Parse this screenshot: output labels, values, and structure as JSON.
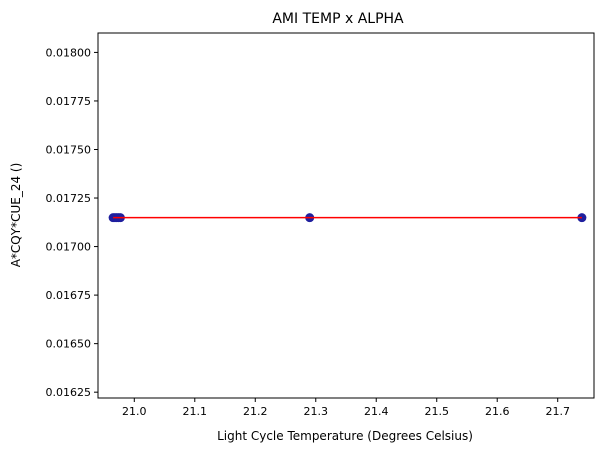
{
  "chart_data": {
    "type": "scatter",
    "title": "AMI TEMP x ALPHA",
    "xlabel": "Light Cycle Temperature (Degrees Celsius)",
    "ylabel": "A*CQY*CUE_24 ()",
    "xlim": [
      20.94,
      21.76
    ],
    "ylim": [
      0.01622,
      0.0181
    ],
    "xticks": [
      "21.0",
      "21.1",
      "21.2",
      "21.3",
      "21.4",
      "21.5",
      "21.6",
      "21.7"
    ],
    "xtick_values": [
      21.0,
      21.1,
      21.2,
      21.3,
      21.4,
      21.5,
      21.6,
      21.7
    ],
    "yticks": [
      "0.01625",
      "0.01650",
      "0.01675",
      "0.01700",
      "0.01725",
      "0.01750",
      "0.01775",
      "0.01800"
    ],
    "ytick_values": [
      0.01625,
      0.0165,
      0.01675,
      0.017,
      0.01725,
      0.0175,
      0.01775,
      0.018
    ],
    "grid": false,
    "series": [
      {
        "kind": "points",
        "color": "#1f1f9e",
        "x": [
          20.965,
          20.968,
          20.971,
          20.974,
          20.977,
          21.29,
          21.74
        ],
        "y": [
          0.017149,
          0.017149,
          0.017149,
          0.017149,
          0.017149,
          0.017149,
          0.017149
        ]
      },
      {
        "kind": "line",
        "color": "#ff0000",
        "x": [
          20.965,
          21.74
        ],
        "y": [
          0.017149,
          0.017149
        ]
      }
    ]
  }
}
